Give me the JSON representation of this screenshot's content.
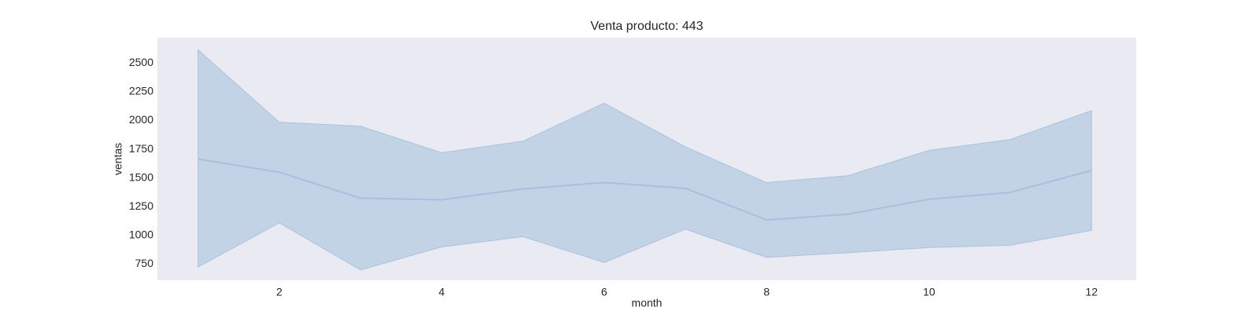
{
  "chart_data": {
    "type": "line",
    "title": "Venta producto: 443",
    "xlabel": "month",
    "ylabel": "ventas",
    "xlim": [
      0.5,
      12.55
    ],
    "ylim": [
      610,
      2720
    ],
    "xticks": [
      2,
      4,
      6,
      8,
      10,
      12
    ],
    "yticks": [
      750,
      1000,
      1250,
      1500,
      1750,
      2000,
      2250,
      2500
    ],
    "grid": false,
    "legend": "none",
    "colors": {
      "plot_background": "#eaeaf2",
      "line": "#a6c1dc",
      "band_fill": "#c2d3e5",
      "band_edge": "#a9c3dd"
    },
    "series": [
      {
        "x": [
          1,
          2,
          3,
          4,
          5,
          6,
          7,
          8,
          9,
          10,
          11,
          12
        ],
        "values": [
          1665,
          1550,
          1325,
          1310,
          1405,
          1460,
          1410,
          1135,
          1185,
          1315,
          1375,
          1565
        ],
        "upper": [
          2615,
          1985,
          1950,
          1720,
          1820,
          2150,
          1770,
          1460,
          1520,
          1740,
          1835,
          2085
        ],
        "lower": [
          725,
          1110,
          700,
          900,
          990,
          765,
          1055,
          810,
          850,
          895,
          915,
          1045
        ]
      }
    ]
  }
}
